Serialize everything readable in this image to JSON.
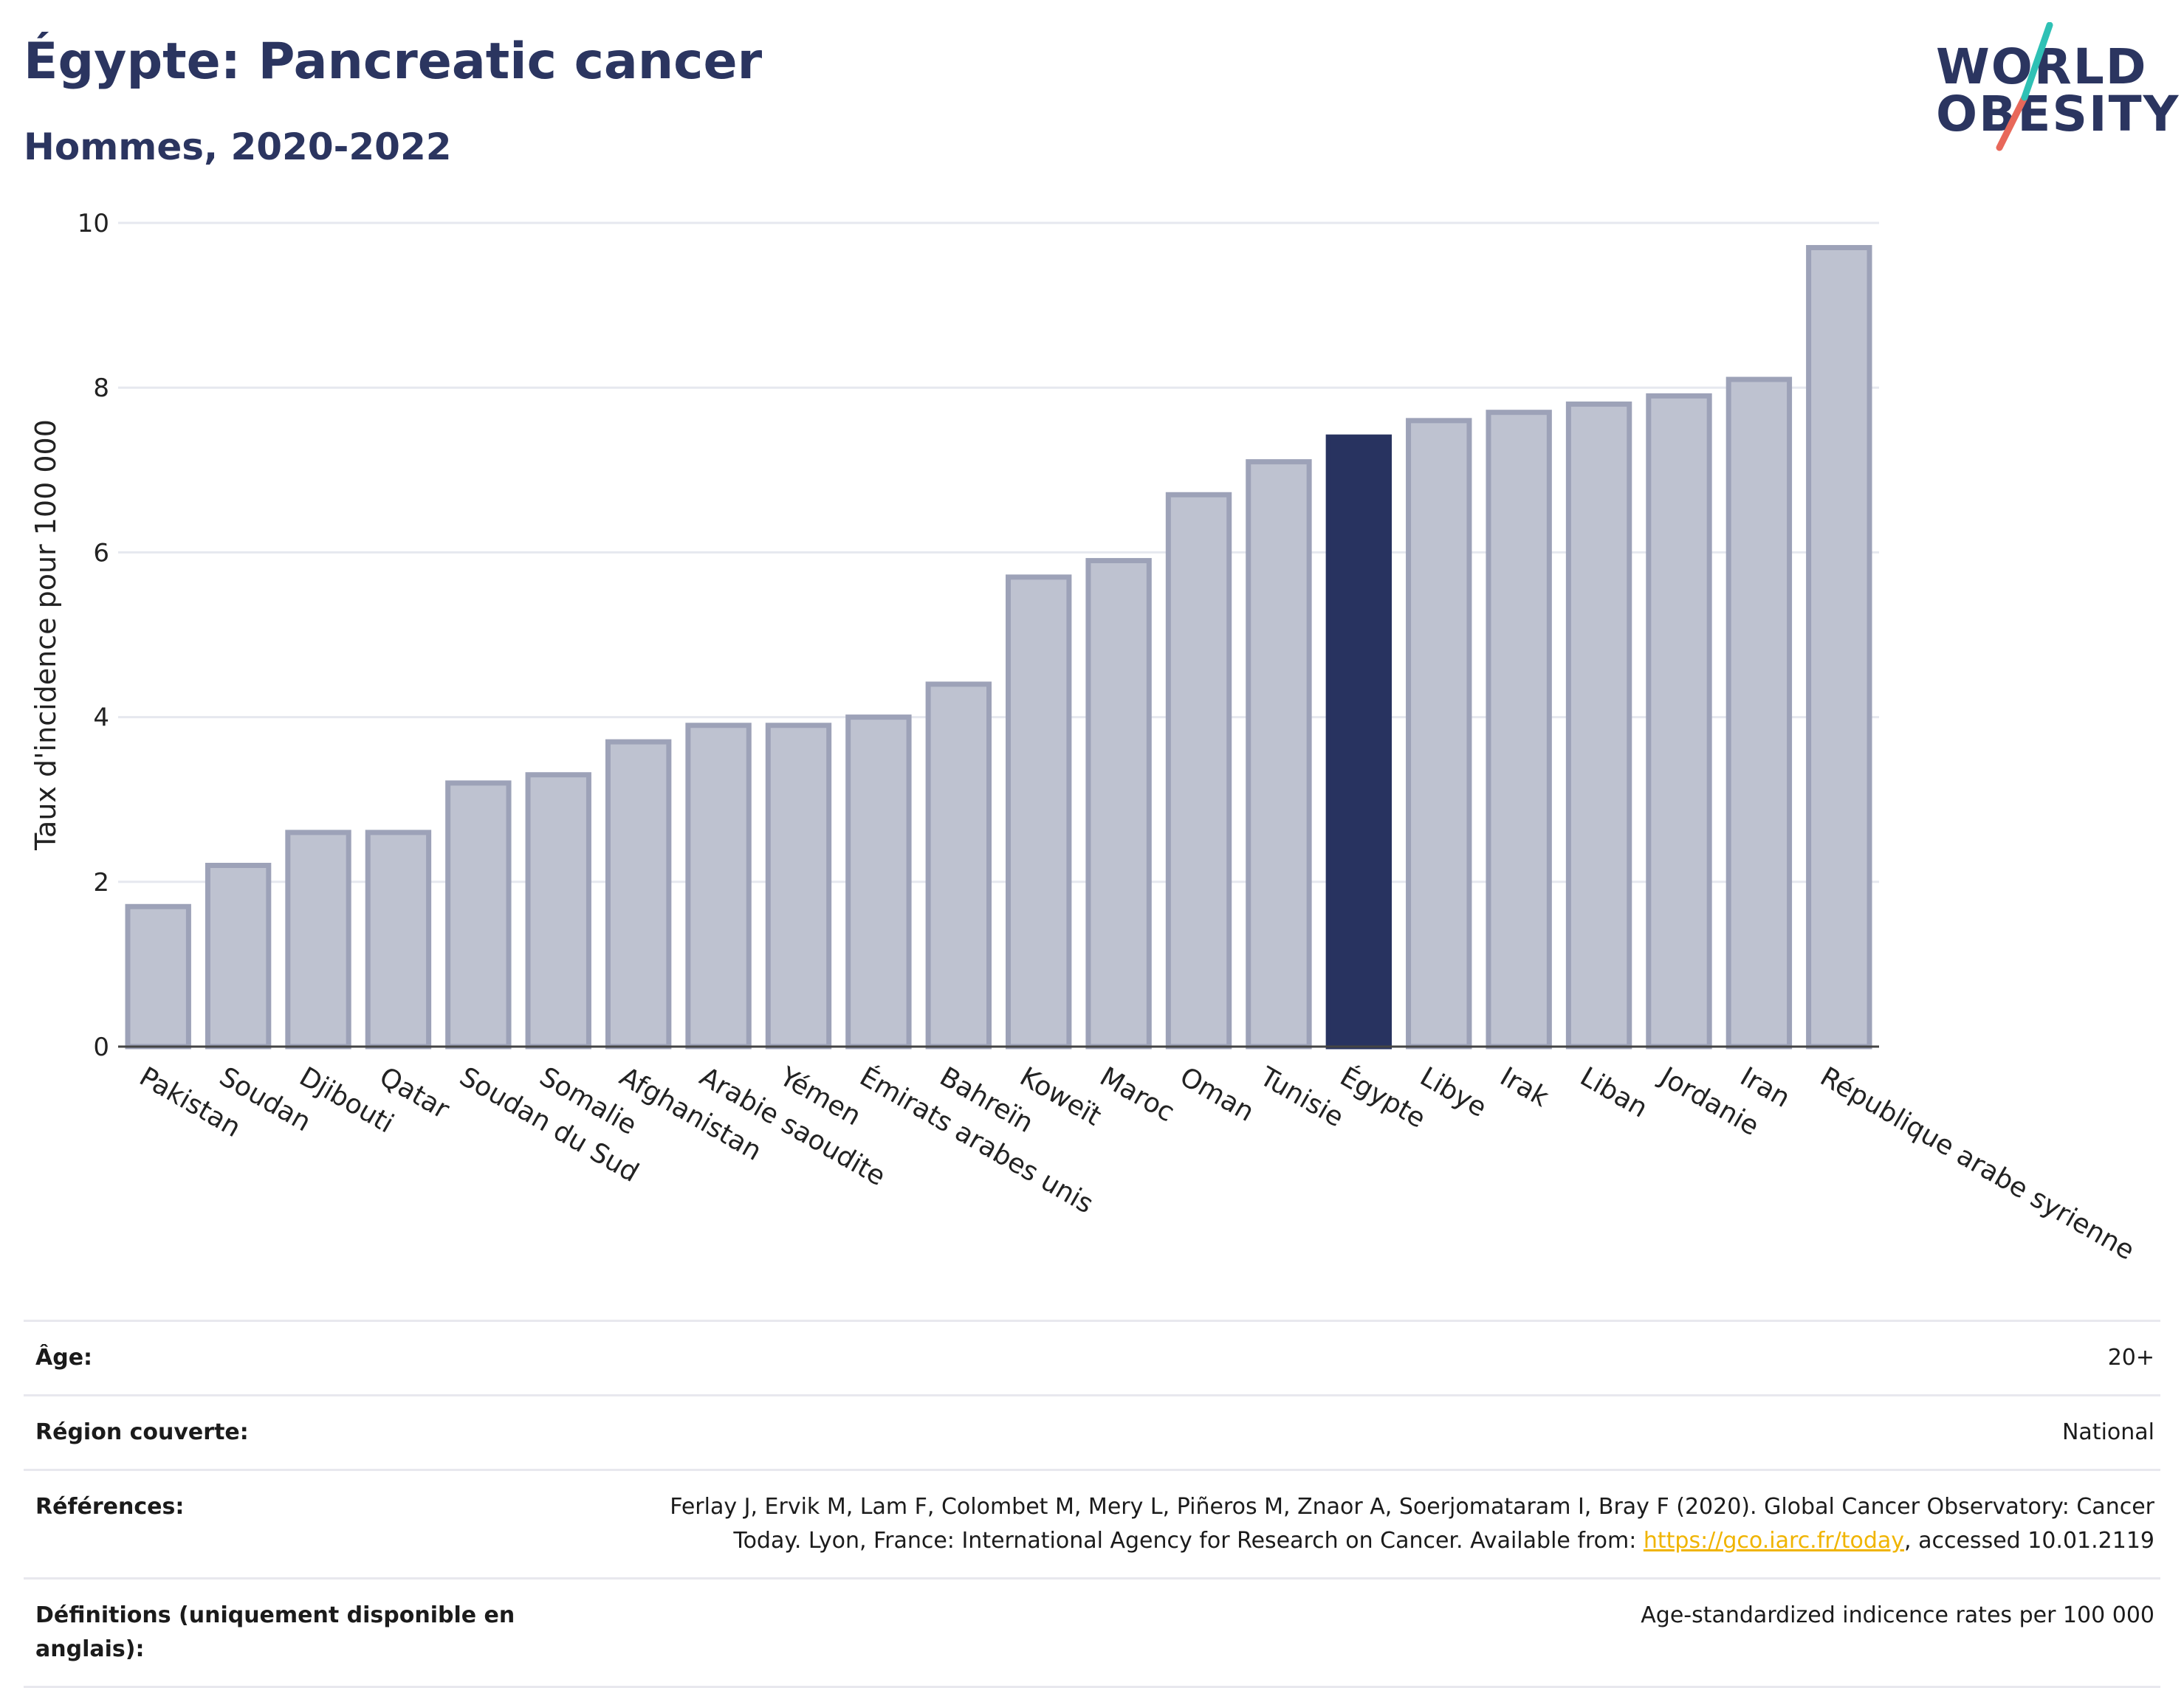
{
  "header": {
    "title": "Égypte: Pancreatic cancer",
    "subtitle": "Hommes, 2020-2022"
  },
  "logo": {
    "line1": "WORLD",
    "line2": "OBESITY",
    "accent_colors": [
      "#2fc1b5",
      "#e8685a"
    ]
  },
  "colors": {
    "bar_default": "#bec2d0",
    "bar_border": "#9da2b8",
    "bar_highlight": "#283360",
    "axis_text": "#222222",
    "grid": "#e6e8ef"
  },
  "chart_data": {
    "type": "bar",
    "title": "Égypte: Pancreatic cancer",
    "subtitle": "Hommes, 2020-2022",
    "ylabel": "Taux d'incidence pour 100 000",
    "xlabel": "",
    "ylim": [
      0,
      10
    ],
    "yticks": [
      0,
      2,
      4,
      6,
      8,
      10
    ],
    "grid": true,
    "highlight": "Égypte",
    "categories": [
      "Pakistan",
      "Soudan",
      "Djibouti",
      "Qatar",
      "Soudan du Sud",
      "Somalie",
      "Afghanistan",
      "Arabie saoudite",
      "Yémen",
      "Émirats arabes unis",
      "Bahreïn",
      "Koweït",
      "Maroc",
      "Oman",
      "Tunisie",
      "Égypte",
      "Libye",
      "Irak",
      "Liban",
      "Jordanie",
      "Iran",
      "République arabe syrienne"
    ],
    "values": [
      1.7,
      2.2,
      2.6,
      2.6,
      3.2,
      3.3,
      3.7,
      3.9,
      3.9,
      4.0,
      4.4,
      5.7,
      5.9,
      6.7,
      7.1,
      7.4,
      7.6,
      7.7,
      7.8,
      7.9,
      8.1,
      9.7
    ]
  },
  "info": [
    {
      "label": "Âge:",
      "value": "20+"
    },
    {
      "label": "Région couverte:",
      "value": "National"
    },
    {
      "label": "Références:",
      "value_pre": "Ferlay J, Ervik M, Lam F, Colombet M, Mery L, Piñeros M, Znaor A, Soerjomataram I, Bray F (2020). Global Cancer Observatory: Cancer Today. Lyon, France: International Agency for Research on Cancer. Available from: ",
      "link": "https://gco.iarc.fr/today",
      "value_post": ", accessed 10.01.2119"
    },
    {
      "label": "Définitions (uniquement disponible en anglais):",
      "value": "Age-standardized indicence rates per 100 000"
    }
  ]
}
